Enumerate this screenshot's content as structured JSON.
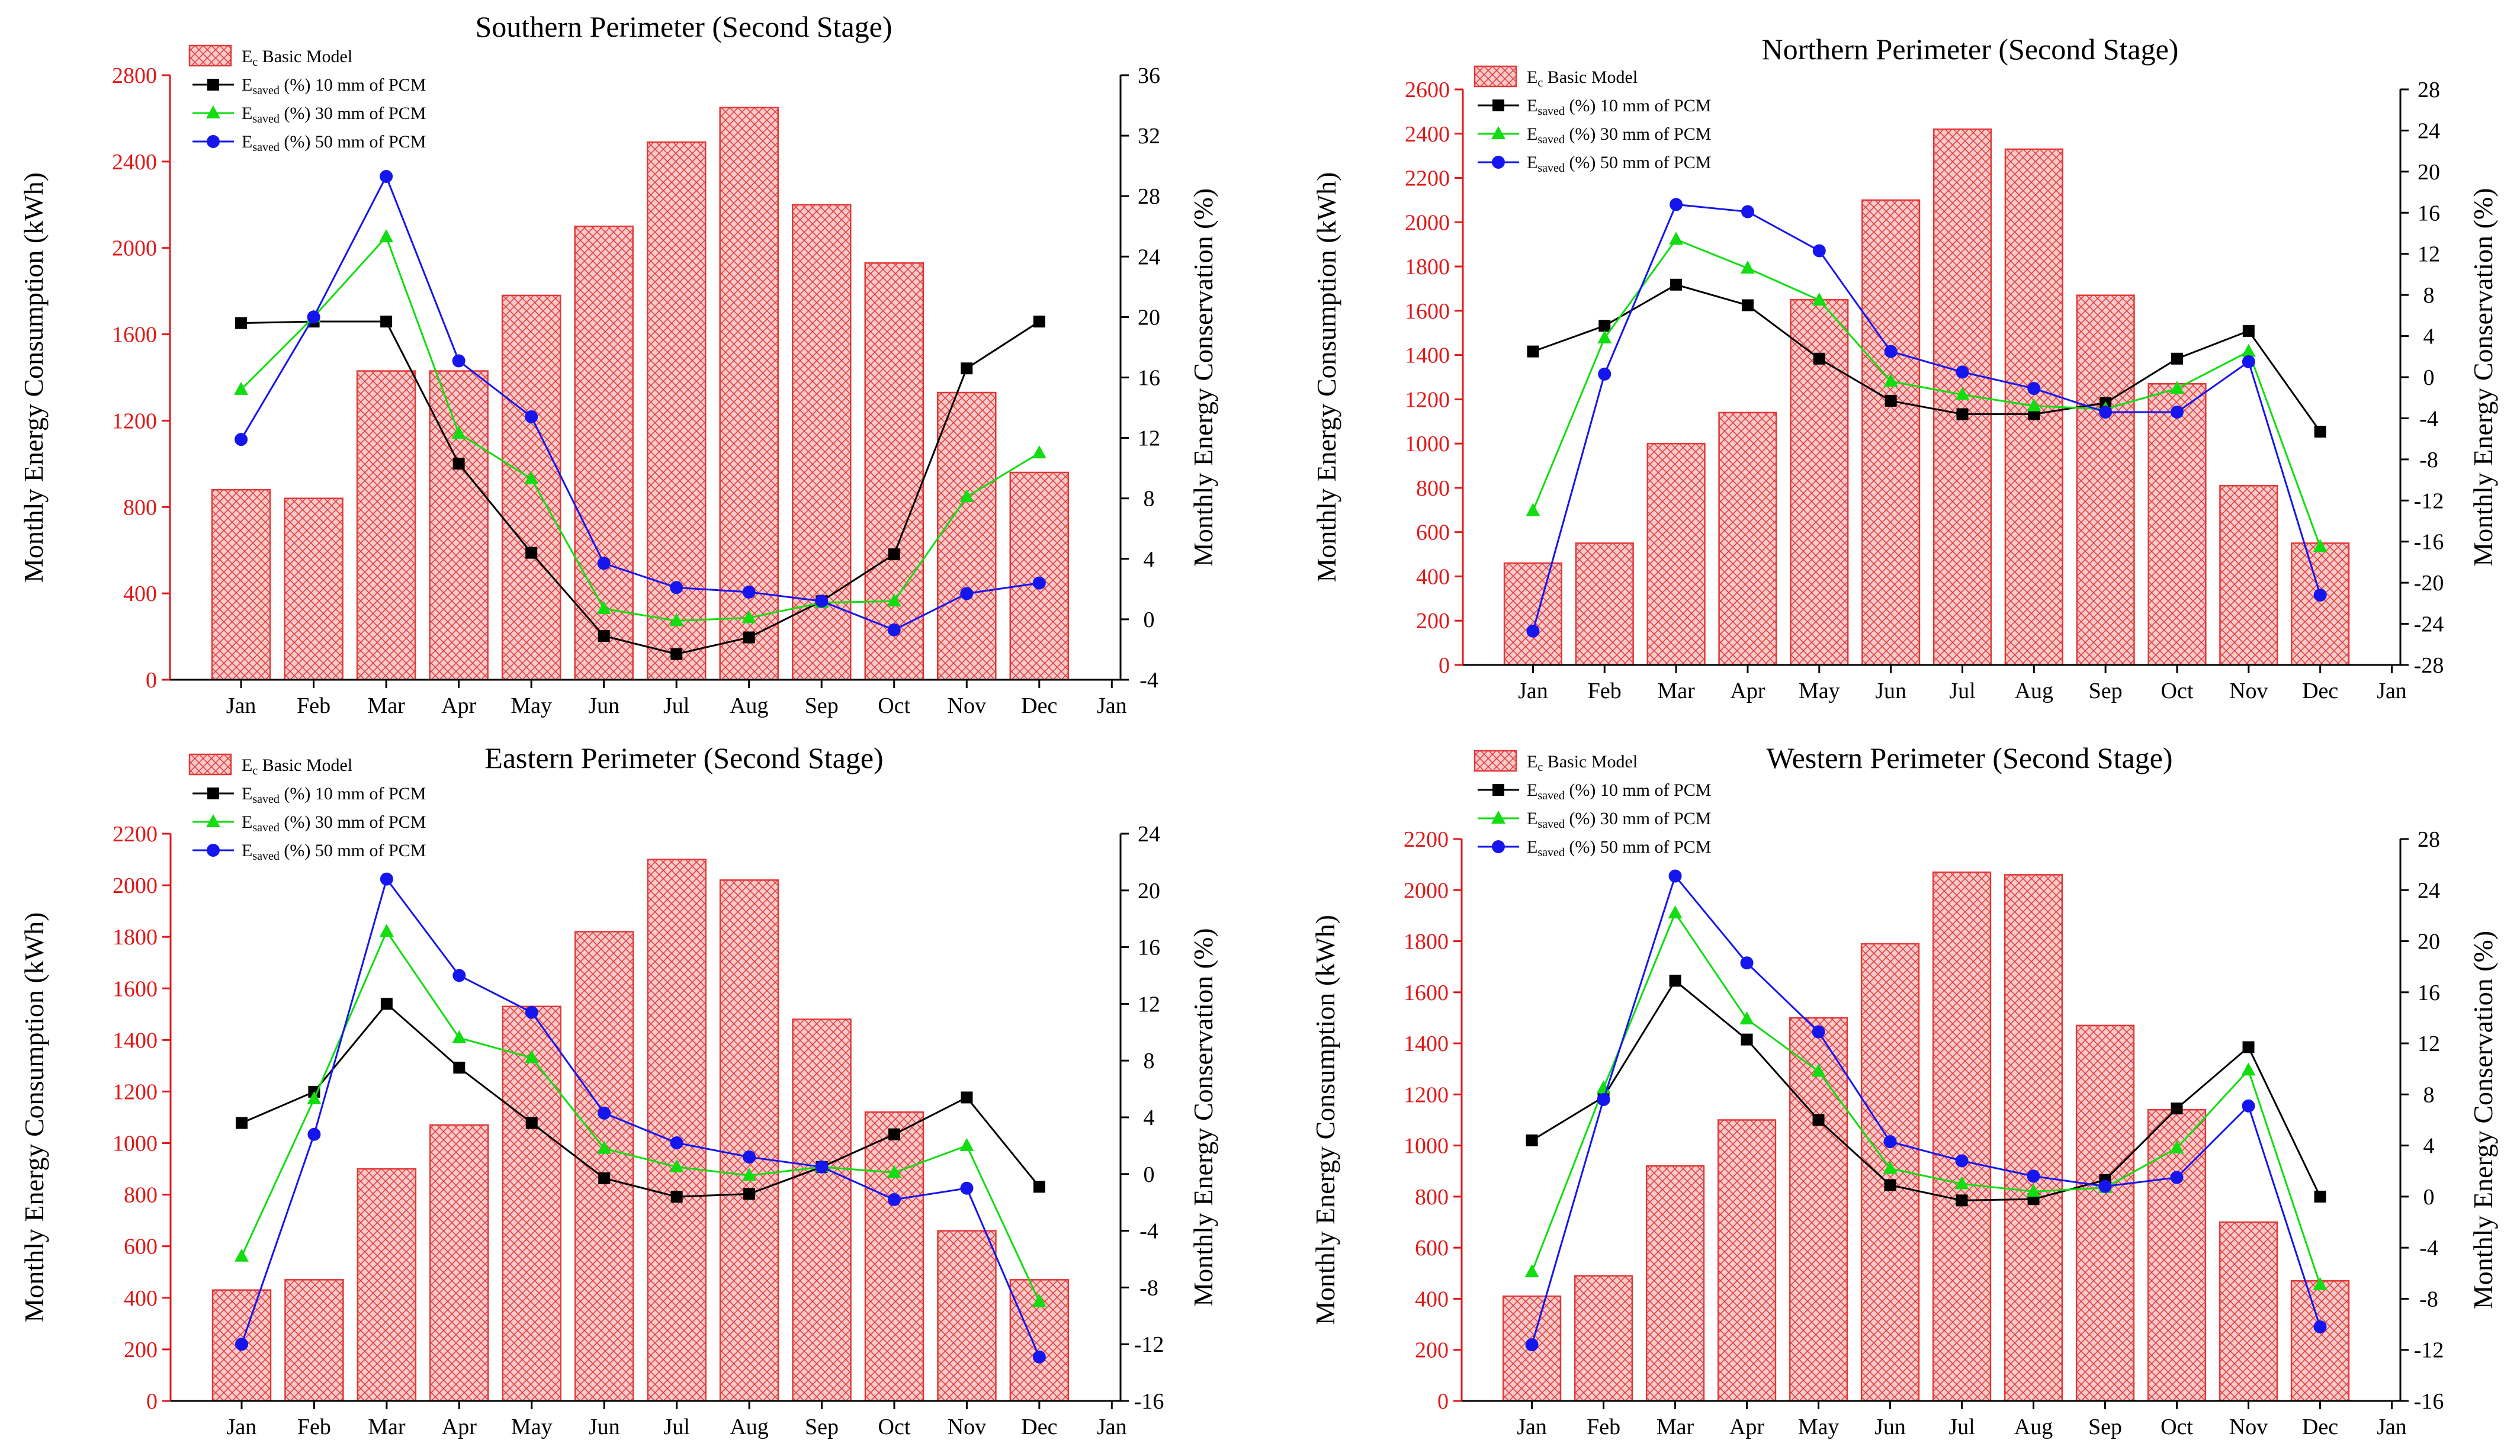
{
  "colors": {
    "bar_fill": "#f8caca",
    "bar_stroke": "#e23838",
    "hatch": "#e23838",
    "left_axis": "#e01818",
    "series_10mm": "#000000",
    "series_30mm": "#11dd11",
    "series_50mm": "#1515ee",
    "axis": "#000000"
  },
  "chart_data": [
    {
      "type": "bar+line",
      "title": "Southern Perimeter (Second Stage)",
      "ylabel": "Monthly Energy Consumption (kWh)",
      "y2label": "Monthly Energy Conservation (%)",
      "categories": [
        "Jan",
        "Feb",
        "Mar",
        "Apr",
        "May",
        "Jun",
        "Jul",
        "Aug",
        "Sep",
        "Oct",
        "Nov",
        "Dec"
      ],
      "xticks": [
        "Jan",
        "Feb",
        "Mar",
        "Apr",
        "May",
        "Jun",
        "Jul",
        "Aug",
        "Sep",
        "Oct",
        "Nov",
        "Dec",
        "Jan"
      ],
      "ylim": [
        0,
        2800
      ],
      "ystep": 400,
      "y2lim": [
        -4,
        36
      ],
      "y2step": 4,
      "bars": {
        "name": "E",
        "sub": "c",
        "rest": " Basic Model",
        "values": [
          880,
          840,
          1430,
          1430,
          1780,
          2100,
          2490,
          2650,
          2200,
          1930,
          1330,
          960
        ]
      },
      "series": [
        {
          "name": "E",
          "sub": "saved",
          "rest": " (%) 10 mm of PCM",
          "marker": "square",
          "values": [
            19.6,
            19.7,
            19.7,
            10.3,
            4.4,
            -1.1,
            -2.3,
            -1.2,
            1.2,
            4.3,
            16.6,
            19.7
          ]
        },
        {
          "name": "E",
          "sub": "saved",
          "rest": " (%) 30 mm of PCM",
          "marker": "triangle",
          "values": [
            15.2,
            20.0,
            25.3,
            12.3,
            9.3,
            0.7,
            -0.1,
            0.1,
            1.1,
            1.2,
            8.1,
            11.0
          ]
        },
        {
          "name": "E",
          "sub": "saved",
          "rest": " (%) 50 mm of PCM",
          "marker": "circle",
          "values": [
            11.9,
            20.0,
            29.3,
            17.1,
            13.4,
            3.7,
            2.1,
            1.8,
            1.2,
            -0.7,
            1.7,
            2.4
          ]
        }
      ]
    },
    {
      "type": "bar+line",
      "title": "Northern Perimeter (Second Stage)",
      "ylabel": "Monthly Energy Consumption (kWh)",
      "y2label": "Monthly Energy Conservation (%)",
      "categories": [
        "Jan",
        "Feb",
        "Mar",
        "Apr",
        "May",
        "Jun",
        "Jul",
        "Aug",
        "Sep",
        "Oct",
        "Nov",
        "Dec"
      ],
      "xticks": [
        "Jan",
        "Feb",
        "Mar",
        "Apr",
        "May",
        "Jun",
        "Jul",
        "Aug",
        "Sep",
        "Oct",
        "Nov",
        "Dec",
        "Jan"
      ],
      "ylim": [
        0,
        2600
      ],
      "ystep": 200,
      "y2lim": [
        -28,
        28
      ],
      "y2step": 4,
      "bars": {
        "name": "E",
        "sub": "c",
        "rest": " Basic Model",
        "values": [
          460,
          550,
          1000,
          1140,
          1650,
          2100,
          2420,
          2330,
          1670,
          1270,
          810,
          550
        ]
      },
      "series": [
        {
          "name": "E",
          "sub": "saved",
          "rest": " (%) 10 mm of PCM",
          "marker": "square",
          "values": [
            2.5,
            5.0,
            9.0,
            7.0,
            1.8,
            -2.3,
            -3.6,
            -3.6,
            -2.5,
            1.8,
            4.5,
            -5.3
          ]
        },
        {
          "name": "E",
          "sub": "saved",
          "rest": " (%) 30 mm of PCM",
          "marker": "triangle",
          "values": [
            -13.0,
            3.8,
            13.4,
            10.6,
            7.5,
            -0.4,
            -1.7,
            -2.8,
            -3.1,
            -1.1,
            2.5,
            -16.5
          ]
        },
        {
          "name": "E",
          "sub": "saved",
          "rest": " (%) 50 mm of PCM",
          "marker": "circle",
          "values": [
            -24.7,
            0.3,
            16.8,
            16.1,
            12.3,
            2.5,
            0.5,
            -1.1,
            -3.4,
            -3.4,
            1.5,
            -21.2
          ]
        }
      ]
    },
    {
      "type": "bar+line",
      "title": "Eastern Perimeter (Second Stage)",
      "ylabel": "Monthly Energy Consumption (kWh)",
      "y2label": "Monthly Energy Conservation (%)",
      "categories": [
        "Jan",
        "Feb",
        "Mar",
        "Apr",
        "May",
        "Jun",
        "Jul",
        "Aug",
        "Sep",
        "Oct",
        "Nov",
        "Dec"
      ],
      "xticks": [
        "Jan",
        "Feb",
        "Mar",
        "Apr",
        "May",
        "Jun",
        "Jul",
        "Aug",
        "Sep",
        "Oct",
        "Nov",
        "Dec",
        "Jan"
      ],
      "ylim": [
        0,
        2200
      ],
      "ystep": 200,
      "y2lim": [
        -16,
        24
      ],
      "y2step": 4,
      "bars": {
        "name": "E",
        "sub": "c",
        "rest": " Basic Model",
        "values": [
          430,
          470,
          900,
          1070,
          1530,
          1820,
          2100,
          2020,
          1480,
          1120,
          660,
          470
        ]
      },
      "series": [
        {
          "name": "E",
          "sub": "saved",
          "rest": " (%) 10 mm of PCM",
          "marker": "square",
          "values": [
            3.6,
            5.8,
            12.0,
            7.5,
            3.6,
            -0.3,
            -1.6,
            -1.4,
            0.5,
            2.8,
            5.4,
            -0.9
          ]
        },
        {
          "name": "E",
          "sub": "saved",
          "rest": " (%) 30 mm of PCM",
          "marker": "triangle",
          "values": [
            -5.8,
            5.3,
            17.1,
            9.6,
            8.2,
            1.8,
            0.5,
            -0.1,
            0.5,
            0.1,
            2.0,
            -9.0
          ]
        },
        {
          "name": "E",
          "sub": "saved",
          "rest": " (%) 50 mm of PCM",
          "marker": "circle",
          "values": [
            -12.0,
            2.8,
            20.8,
            14.0,
            11.4,
            4.3,
            2.2,
            1.2,
            0.5,
            -1.8,
            -1.0,
            -12.9
          ]
        }
      ]
    },
    {
      "type": "bar+line",
      "title": "Western Perimeter (Second Stage)",
      "ylabel": "Monthly Energy Consumption (kWh)",
      "y2label": "Monthly Energy Conservation (%)",
      "categories": [
        "Jan",
        "Feb",
        "Mar",
        "Apr",
        "May",
        "Jun",
        "Jul",
        "Aug",
        "Sep",
        "Oct",
        "Nov",
        "Dec"
      ],
      "xticks": [
        "Jan",
        "Feb",
        "Mar",
        "Apr",
        "May",
        "Jun",
        "Jul",
        "Aug",
        "Sep",
        "Oct",
        "Nov",
        "Dec",
        "Jan"
      ],
      "ylim": [
        0,
        2200
      ],
      "ystep": 200,
      "y2lim": [
        -16,
        28
      ],
      "y2step": 4,
      "bars": {
        "name": "E",
        "sub": "c",
        "rest": " Basic Model",
        "values": [
          410,
          490,
          920,
          1100,
          1500,
          1790,
          2070,
          2060,
          1470,
          1140,
          700,
          470
        ]
      },
      "series": [
        {
          "name": "E",
          "sub": "saved",
          "rest": " (%) 10 mm of PCM",
          "marker": "square",
          "values": [
            4.4,
            7.8,
            16.9,
            12.3,
            6.0,
            0.9,
            -0.3,
            -0.2,
            1.3,
            6.9,
            11.7,
            0.0
          ]
        },
        {
          "name": "E",
          "sub": "saved",
          "rest": " (%) 30 mm of PCM",
          "marker": "triangle",
          "values": [
            -5.9,
            8.5,
            22.2,
            13.9,
            9.8,
            2.2,
            1.0,
            0.4,
            0.7,
            3.8,
            9.9,
            -6.9
          ]
        },
        {
          "name": "E",
          "sub": "saved",
          "rest": " (%) 50 mm of PCM",
          "marker": "circle",
          "values": [
            -11.6,
            7.6,
            25.1,
            18.3,
            12.9,
            4.3,
            2.8,
            1.6,
            0.8,
            1.5,
            7.1,
            -10.2
          ]
        }
      ]
    }
  ]
}
